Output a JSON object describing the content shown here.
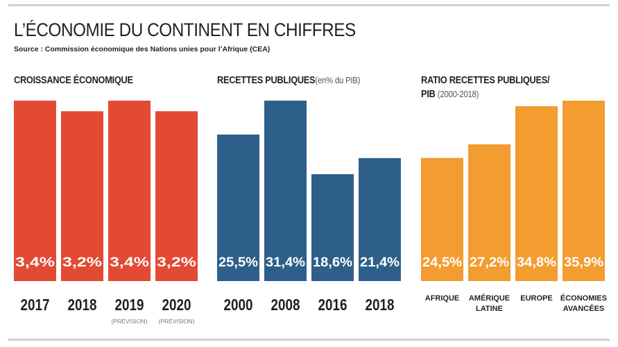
{
  "title": "L’ÉCONOMIE DU CONTINENT EN CHIFFRES",
  "source": "Source : Commission économique des Nations unies pour l’Afrique (CEA)",
  "chart_data": [
    {
      "type": "bar",
      "title": "CROISSANCE ÉCONOMIQUE",
      "subtitle": "",
      "color": "#e34a33",
      "categories": [
        "2017",
        "2018",
        "2019",
        "2020"
      ],
      "category_notes": [
        "",
        "",
        "(PRÉVISION)",
        "(PRÉVISION)"
      ],
      "values": [
        3.4,
        3.2,
        3.4,
        3.2
      ],
      "value_labels": [
        "3,4%",
        "3,2%",
        "3,4%",
        "3,2%"
      ],
      "unit": "%",
      "ylim": [
        0,
        3.4
      ]
    },
    {
      "type": "bar",
      "title": "RECETTES PUBLIQUES",
      "subtitle": "(en% du PIB)",
      "color": "#2e5f8a",
      "categories": [
        "2000",
        "2008",
        "2016",
        "2018"
      ],
      "category_notes": [
        "",
        "",
        "",
        ""
      ],
      "values": [
        25.5,
        31.4,
        18.6,
        21.4
      ],
      "value_labels": [
        "25,5%",
        "31,4%",
        "18,6%",
        "21,4%"
      ],
      "unit": "%",
      "ylim": [
        0,
        31.4
      ]
    },
    {
      "type": "bar",
      "title": "RATIO RECETTES PUBLIQUES/ PIB",
      "title_lines": [
        "RATIO RECETTES PUBLIQUES/",
        "PIB"
      ],
      "subtitle": "(2000-2018)",
      "color": "#f39c2f",
      "categories": [
        "AFRIQUE",
        "AMÉRIQUE LATINE",
        "EUROPE",
        "ÉCONOMIES AVANCÉES"
      ],
      "category_lines": [
        [
          "AFRIQUE"
        ],
        [
          "AMÉRIQUE",
          "LATINE"
        ],
        [
          "EUROPE"
        ],
        [
          "ÉCONOMIES",
          "AVANCÉES"
        ]
      ],
      "category_notes": [
        "",
        "",
        "",
        ""
      ],
      "values": [
        24.5,
        27.2,
        34.8,
        35.9
      ],
      "value_labels": [
        "24,5%",
        "27,2%",
        "34,8%",
        "35,9%"
      ],
      "unit": "%",
      "ylim": [
        0,
        35.9
      ]
    }
  ]
}
